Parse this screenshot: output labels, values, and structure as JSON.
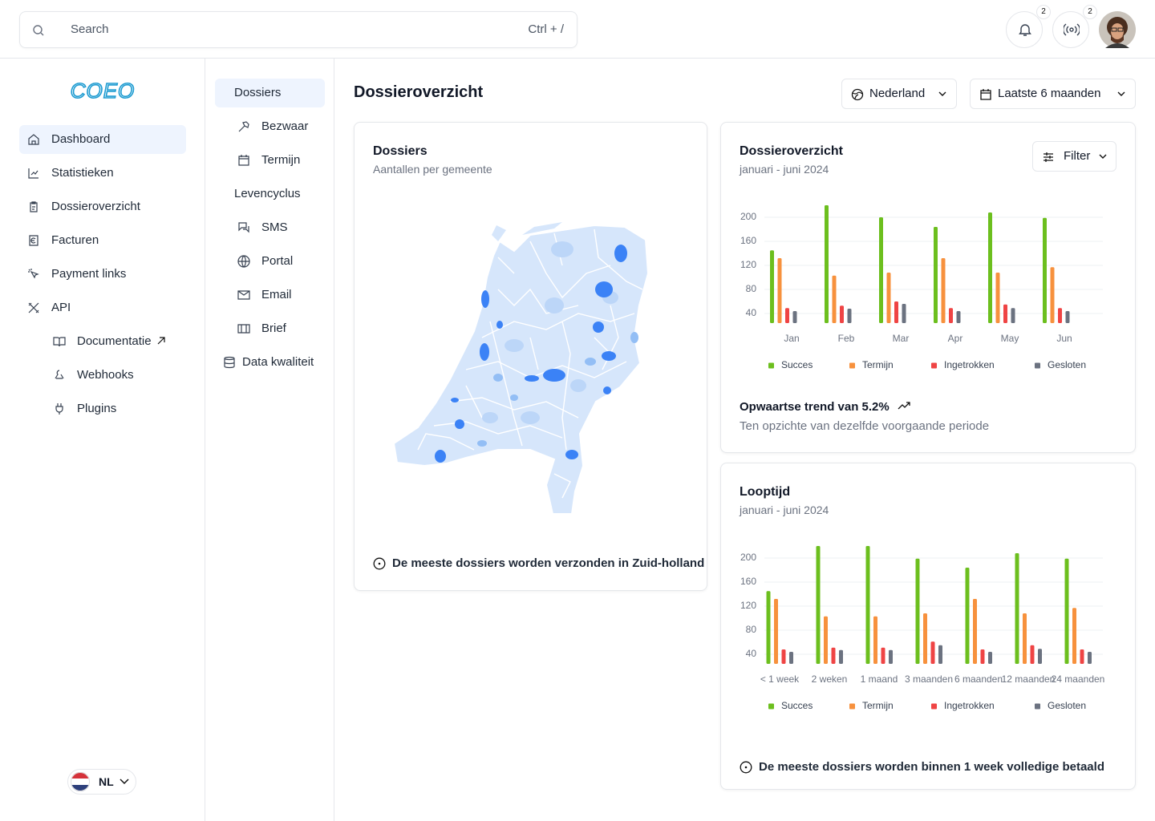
{
  "search": {
    "placeholder": "Search",
    "shortcut": "Ctrl + /"
  },
  "notifications": [
    2,
    2
  ],
  "logo": "COEO",
  "nav": [
    "Dashboard",
    "Statistieken",
    "Dossieroverzicht",
    "Facturen",
    "Payment links",
    "API",
    "Documentatie",
    "Webhooks",
    "Plugins"
  ],
  "subnav": [
    "Dossiers",
    "Bezwaar",
    "Termijn",
    "Levencyclus",
    "SMS",
    "Portal",
    "Email",
    "Brief",
    "Data kwaliteit"
  ],
  "language": "NL",
  "page_title": "Dossieroverzicht",
  "filters": {
    "region": "Nederland",
    "period": "Laatste 6 maanden"
  },
  "map_card": {
    "title": "Dossiers",
    "subtitle": "Aantallen per gemeente",
    "footer": "De meeste dossiers worden verzonden in Zuid-holland"
  },
  "chart_data": [
    {
      "type": "bar",
      "title": "Dossieroverzicht",
      "subtitle": "januari - juni 2024",
      "filter_label": "Filter",
      "categories": [
        "Jan",
        "Feb",
        "Mar",
        "Apr",
        "May",
        "Jun"
      ],
      "series": [
        {
          "name": "Succes",
          "color": "#6cbf1e",
          "values": [
            145,
            220,
            200,
            184,
            208,
            199
          ]
        },
        {
          "name": "Termijn",
          "color": "#f7913d",
          "values": [
            132,
            103,
            108,
            132,
            108,
            117
          ]
        },
        {
          "name": "Ingetrokken",
          "color": "#ef4444",
          "values": [
            49,
            53,
            60,
            49,
            55,
            49
          ]
        },
        {
          "name": "Gesloten",
          "color": "#6b7280",
          "values": [
            44,
            48,
            56,
            44,
            49,
            44
          ]
        }
      ],
      "ylim": [
        24,
        224
      ],
      "yticks": [
        40,
        80,
        120,
        160,
        200
      ],
      "grid": true,
      "trend": "Opwaartse trend van 5.2%",
      "trend_note": "Ten opzichte van dezelfde voorgaande periode"
    },
    {
      "type": "bar",
      "title": "Looptijd",
      "subtitle": "januari - juni 2024",
      "categories": [
        "< 1 week",
        "2 weken",
        "1 maand",
        "3 maanden",
        "6 maanden",
        "12 maanden",
        "24 maanden"
      ],
      "series": [
        {
          "name": "Succes",
          "color": "#6cbf1e",
          "values": [
            145,
            220,
            220,
            199,
            184,
            208,
            199
          ]
        },
        {
          "name": "Termijn",
          "color": "#f7913d",
          "values": [
            132,
            103,
            103,
            108,
            132,
            108,
            117
          ]
        },
        {
          "name": "Ingetrokken",
          "color": "#ef4444",
          "values": [
            48,
            51,
            51,
            61,
            48,
            55,
            48
          ]
        },
        {
          "name": "Gesloten",
          "color": "#6b7280",
          "values": [
            44,
            47,
            47,
            55,
            44,
            49,
            44
          ]
        }
      ],
      "ylim": [
        24,
        224
      ],
      "yticks": [
        40,
        80,
        120,
        160,
        200
      ],
      "grid": true,
      "footer": "De meeste dossiers worden binnen 1 week volledige betaald"
    }
  ]
}
